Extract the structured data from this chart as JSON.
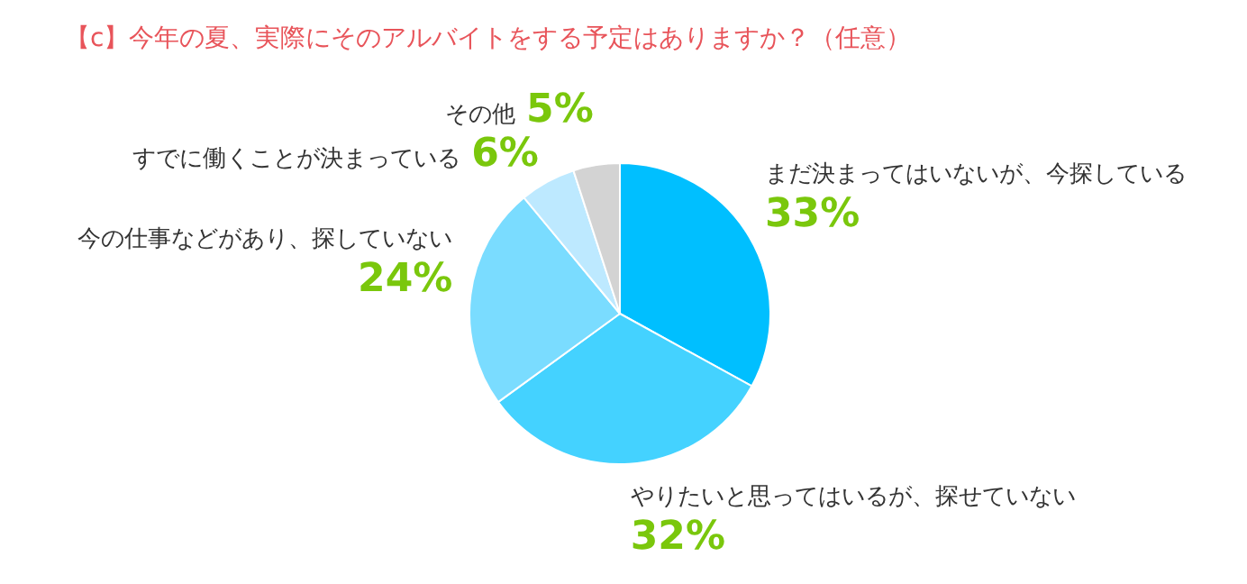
{
  "chart_data": {
    "type": "pie",
    "title": "【c】今年の夏、実際にそのアルバイトをする予定はありますか？（任意）",
    "categories": [
      "まだ決まってはいないが、今探している",
      "やりたいと思ってはいるが、探せていない",
      "今の仕事などがあり、探していない",
      "すでに働くことが決まっている",
      "その他"
    ],
    "values": [
      33,
      32,
      24,
      6,
      5
    ],
    "colors": [
      "#00bfff",
      "#44d2ff",
      "#7adcff",
      "#bde9ff",
      "#d3d3d3"
    ],
    "value_labels": [
      "33%",
      "32%",
      "24%",
      "6%",
      "5%"
    ],
    "legend": false
  }
}
